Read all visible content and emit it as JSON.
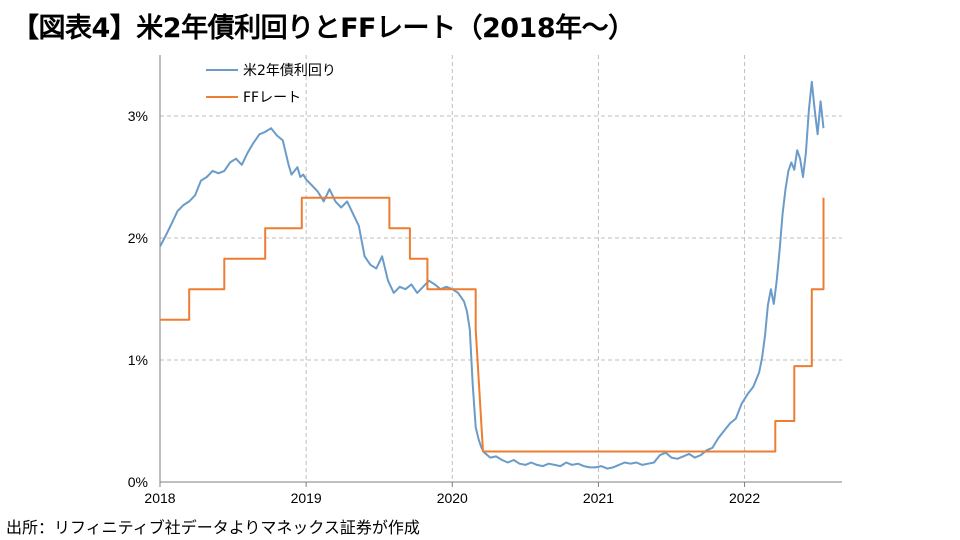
{
  "title": "【図表4】米2年債利回りとFFレート（2018年～）",
  "source": "出所：リフィニティブ社データよりマネックス証券が作成",
  "chart_data": {
    "type": "line",
    "title": "【図表4】米2年債利回りとFFレート（2018年～）",
    "xlabel": "",
    "ylabel": "",
    "xlim": [
      2018.0,
      2022.55
    ],
    "ylim": [
      0,
      3.0
    ],
    "x_ticks": [
      "2018",
      "2019",
      "2020",
      "2021",
      "2022"
    ],
    "x_tick_values": [
      2018,
      2019,
      2020,
      2021,
      2022
    ],
    "y_ticks": [
      "0%",
      "1%",
      "2%",
      "3%"
    ],
    "y_tick_values": [
      0,
      1,
      2,
      3
    ],
    "grid": true,
    "legend_position": "top-left",
    "series": [
      {
        "name": "米2年債利回り",
        "color": "#6b9bc8",
        "x": [
          2018.0,
          2018.04,
          2018.08,
          2018.12,
          2018.16,
          2018.2,
          2018.24,
          2018.28,
          2018.32,
          2018.36,
          2018.4,
          2018.44,
          2018.48,
          2018.52,
          2018.56,
          2018.6,
          2018.64,
          2018.68,
          2018.72,
          2018.76,
          2018.8,
          2018.84,
          2018.88,
          2018.9,
          2018.92,
          2018.94,
          2018.96,
          2018.98,
          2019.0,
          2019.04,
          2019.08,
          2019.12,
          2019.16,
          2019.2,
          2019.24,
          2019.28,
          2019.32,
          2019.36,
          2019.4,
          2019.44,
          2019.48,
          2019.52,
          2019.56,
          2019.6,
          2019.64,
          2019.68,
          2019.72,
          2019.76,
          2019.8,
          2019.84,
          2019.88,
          2019.92,
          2019.96,
          2020.0,
          2020.04,
          2020.08,
          2020.1,
          2020.12,
          2020.14,
          2020.16,
          2020.18,
          2020.2,
          2020.22,
          2020.26,
          2020.3,
          2020.34,
          2020.38,
          2020.42,
          2020.46,
          2020.5,
          2020.54,
          2020.58,
          2020.62,
          2020.66,
          2020.7,
          2020.74,
          2020.78,
          2020.82,
          2020.86,
          2020.9,
          2020.94,
          2020.98,
          2021.02,
          2021.06,
          2021.1,
          2021.14,
          2021.18,
          2021.22,
          2021.26,
          2021.3,
          2021.34,
          2021.38,
          2021.42,
          2021.46,
          2021.5,
          2021.54,
          2021.58,
          2021.62,
          2021.66,
          2021.7,
          2021.74,
          2021.78,
          2021.82,
          2021.86,
          2021.9,
          2021.94,
          2021.98,
          2022.02,
          2022.06,
          2022.1,
          2022.12,
          2022.14,
          2022.16,
          2022.18,
          2022.2,
          2022.22,
          2022.24,
          2022.26,
          2022.28,
          2022.3,
          2022.32,
          2022.34,
          2022.36,
          2022.38,
          2022.4,
          2022.42,
          2022.44,
          2022.46,
          2022.48,
          2022.5,
          2022.52,
          2022.54
        ],
        "values": [
          1.93,
          2.02,
          2.12,
          2.22,
          2.27,
          2.3,
          2.35,
          2.47,
          2.5,
          2.55,
          2.53,
          2.55,
          2.62,
          2.65,
          2.6,
          2.7,
          2.78,
          2.85,
          2.87,
          2.9,
          2.84,
          2.8,
          2.6,
          2.52,
          2.55,
          2.58,
          2.5,
          2.52,
          2.48,
          2.43,
          2.38,
          2.3,
          2.4,
          2.3,
          2.25,
          2.3,
          2.2,
          2.1,
          1.85,
          1.78,
          1.75,
          1.85,
          1.65,
          1.55,
          1.6,
          1.58,
          1.62,
          1.55,
          1.6,
          1.65,
          1.62,
          1.58,
          1.6,
          1.58,
          1.55,
          1.48,
          1.4,
          1.25,
          0.8,
          0.45,
          0.35,
          0.28,
          0.24,
          0.2,
          0.21,
          0.18,
          0.16,
          0.18,
          0.15,
          0.14,
          0.16,
          0.14,
          0.13,
          0.15,
          0.14,
          0.13,
          0.16,
          0.14,
          0.15,
          0.13,
          0.12,
          0.12,
          0.13,
          0.11,
          0.12,
          0.14,
          0.16,
          0.15,
          0.16,
          0.14,
          0.15,
          0.16,
          0.22,
          0.24,
          0.2,
          0.19,
          0.21,
          0.23,
          0.2,
          0.22,
          0.26,
          0.28,
          0.36,
          0.42,
          0.48,
          0.52,
          0.64,
          0.72,
          0.78,
          0.9,
          1.02,
          1.2,
          1.45,
          1.58,
          1.46,
          1.65,
          1.9,
          2.2,
          2.4,
          2.55,
          2.62,
          2.56,
          2.72,
          2.65,
          2.5,
          2.7,
          3.05,
          3.28,
          3.05,
          2.85,
          3.12,
          2.9
        ]
      },
      {
        "name": "FFレート",
        "color": "#ed7d31",
        "x": [
          2018.0,
          2018.2,
          2018.2,
          2018.44,
          2018.44,
          2018.72,
          2018.72,
          2018.97,
          2018.97,
          2019.57,
          2019.57,
          2019.71,
          2019.71,
          2019.83,
          2019.83,
          2020.16,
          2020.16,
          2020.21,
          2020.21,
          2022.21,
          2022.21,
          2022.34,
          2022.34,
          2022.46,
          2022.46,
          2022.54,
          2022.54
        ],
        "values": [
          1.33,
          1.33,
          1.58,
          1.58,
          1.83,
          1.83,
          2.08,
          2.08,
          2.33,
          2.33,
          2.08,
          2.08,
          1.83,
          1.83,
          1.58,
          1.58,
          1.25,
          0.25,
          0.25,
          0.25,
          0.5,
          0.5,
          0.95,
          0.95,
          1.58,
          1.58,
          2.33
        ]
      }
    ]
  }
}
